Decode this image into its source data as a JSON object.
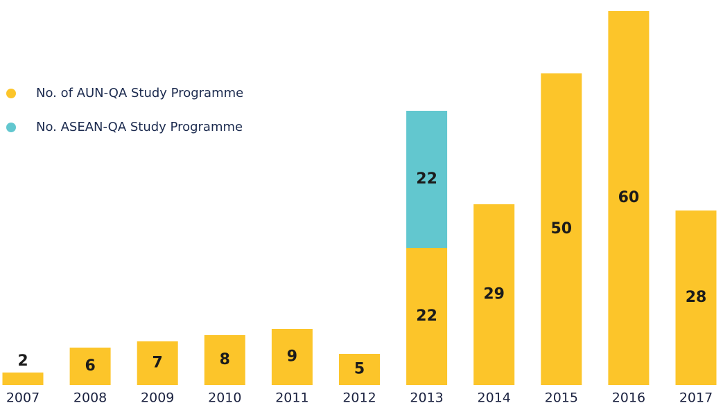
{
  "chart_data": {
    "type": "stacked_bar",
    "categories": [
      "2007",
      "2008",
      "2009",
      "2010",
      "2011",
      "2012",
      "2013",
      "2014",
      "2015",
      "2016",
      "2017"
    ],
    "series": [
      {
        "name": "No. of AUN-QA Study Programme",
        "color": "#fcc52a",
        "values": [
          2,
          6,
          7,
          8,
          9,
          5,
          22,
          29,
          50,
          60,
          28
        ]
      },
      {
        "name": "No. ASEAN-QA Study Programme",
        "color": "#62c7cf",
        "values": [
          null,
          null,
          null,
          null,
          null,
          null,
          22,
          null,
          null,
          null,
          null
        ]
      }
    ],
    "legend": "upper left"
  }
}
